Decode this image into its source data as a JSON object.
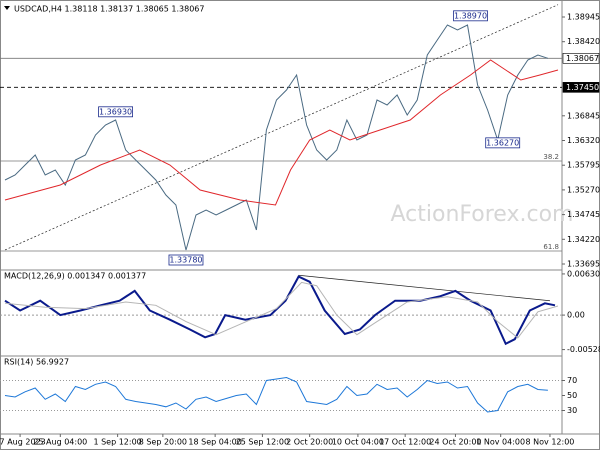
{
  "chart_data": [
    {
      "type": "line",
      "title": "USDCAD,H4  1.38118 1.38137 1.38065 1.38067",
      "watermark": "ActionForex.com",
      "ylim": [
        1.3361,
        1.392
      ],
      "xlim": [
        0,
        55
      ],
      "yticks": [
        {
          "value": 1.38945,
          "label": "1.38945"
        },
        {
          "value": 1.3842,
          "label": "1.38420"
        },
        {
          "value": 1.36845,
          "label": "1.36845"
        },
        {
          "value": 1.3632,
          "label": "1.36320"
        },
        {
          "value": 1.35795,
          "label": "1.35795"
        },
        {
          "value": 1.3527,
          "label": "1.35270"
        },
        {
          "value": 1.34745,
          "label": "1.34745"
        },
        {
          "value": 1.3422,
          "label": "1.34220"
        },
        {
          "value": 1.33695,
          "label": "1.33695"
        }
      ],
      "series": [
        {
          "name": "Close",
          "color": "#4a6a82",
          "values": [
            1.3548,
            1.35587,
            1.35799,
            1.36012,
            1.35587,
            1.35693,
            1.35374,
            1.35905,
            1.36012,
            1.36437,
            1.36649,
            1.36756,
            1.36118,
            1.35905,
            1.35693,
            1.3548,
            1.35162,
            1.34949,
            1.33993,
            1.34736,
            1.34843,
            1.34736,
            1.34843,
            1.34949,
            1.35055,
            1.34418,
            1.36543,
            1.37181,
            1.37393,
            1.37712,
            1.36649,
            1.36118,
            1.35905,
            1.36118,
            1.36756,
            1.36331,
            1.36437,
            1.37181,
            1.37074,
            1.37287,
            1.36862,
            1.37181,
            1.38137,
            1.38456,
            1.38775,
            1.38669,
            1.38775,
            1.375,
            1.36968,
            1.36331,
            1.37287,
            1.37712,
            1.38031,
            1.38137,
            1.38067
          ]
        },
        {
          "name": "MA",
          "color": "#e0272b",
          "x": [
            0,
            5.5,
            9.5,
            13.4,
            16.4,
            19.4,
            23.4,
            26.9,
            28.4,
            30.3,
            32.3,
            34.3,
            37.3,
            40.3,
            43.3,
            46.3,
            48.3,
            49.8,
            51.3,
            53.2,
            55
          ],
          "values": [
            1.35055,
            1.35374,
            1.35799,
            1.36118,
            1.35799,
            1.35268,
            1.35055,
            1.34949,
            1.35693,
            1.36331,
            1.36543,
            1.36331,
            1.36543,
            1.36756,
            1.37287,
            1.37712,
            1.38031,
            1.37818,
            1.37606,
            1.37712,
            1.37818
          ]
        }
      ],
      "levels": [
        {
          "value": 1.38067,
          "label": "1.38067",
          "style": "solid"
        },
        {
          "value": 1.3745,
          "label": "1.37450",
          "style": "dashed"
        },
        {
          "value": 1.35884,
          "label": "38.2",
          "style": "fib"
        },
        {
          "value": 1.33971,
          "label": "61.8",
          "style": "fib"
        }
      ],
      "trendlines": [
        {
          "x": [
            0,
            55
          ],
          "values": [
            1.33993,
            1.39206
          ],
          "style": "dotted"
        }
      ],
      "annotations": [
        {
          "text": "1.36930",
          "x": 11,
          "y": 1.3693
        },
        {
          "text": "1.33780",
          "x": 18,
          "y": 1.3378
        },
        {
          "text": "1.38970",
          "x": 46.3,
          "y": 1.3897
        },
        {
          "text": "1.36270",
          "x": 49.5,
          "y": 1.3627
        }
      ],
      "xticks": [
        {
          "value": 1.5,
          "label": "17 Aug 2023"
        },
        {
          "value": 5.5,
          "label": "25 Aug 04:00"
        },
        {
          "value": 11.2,
          "label": "1 Sep 12:00"
        },
        {
          "value": 15.7,
          "label": "8 Sep 20:00"
        },
        {
          "value": 20.9,
          "label": "18 Sep 04:00"
        },
        {
          "value": 25.6,
          "label": "25 Sep 12:00"
        },
        {
          "value": 30.3,
          "label": "2 Oct 20:00"
        },
        {
          "value": 35.1,
          "label": "10 Oct 04:00"
        },
        {
          "value": 39.8,
          "label": "17 Oct 12:00"
        },
        {
          "value": 44.8,
          "label": "24 Oct 20:00"
        },
        {
          "value": 49.3,
          "label": "1 Nov 04:00"
        },
        {
          "value": 54.2,
          "label": "8 Nov 12:00"
        }
      ]
    },
    {
      "type": "line",
      "title": "MACD(12,26,9) 0.001347 0.001377",
      "ylim": [
        -0.0055,
        0.0066
      ],
      "xlim": [
        0,
        55
      ],
      "yticks": [
        0.006305,
        {
          "value": 0,
          "label": "0.00"
        },
        -0.005283
      ],
      "zero_line": true,
      "series": [
        {
          "name": "MACD",
          "color": "#0a1a8c",
          "x": [
            0,
            1.5,
            3.5,
            5.5,
            7.5,
            9.5,
            11.4,
            12.9,
            14.4,
            16.4,
            18.4,
            19.9,
            20.9,
            21.9,
            23.9,
            26.4,
            27.9,
            29.2,
            30.3,
            31.8,
            33.8,
            35.3,
            36.8,
            38.8,
            41.3,
            43.3,
            44.8,
            46.3,
            48.3,
            49.8,
            50.7,
            52.2,
            53.7,
            54.7
          ],
          "values": [
            0.0022,
            0.0007,
            0.0022,
            0,
            0.0007,
            0.0015,
            0.0022,
            0.0037,
            0.0007,
            -0.0007,
            -0.0022,
            -0.0034,
            -0.0029,
            0,
            -0.0007,
            0,
            0.0022,
            0.0059,
            0.0051,
            0.0007,
            -0.0029,
            -0.0022,
            0,
            0.0022,
            0.0022,
            0.0029,
            0.0037,
            0.0022,
            0.0007,
            -0.0044,
            -0.0037,
            0.0007,
            0.0018,
            0.0015
          ]
        },
        {
          "name": "Signal",
          "color": "#b5b5b5",
          "x": [
            0,
            4,
            8,
            12,
            15,
            18,
            21,
            24,
            27,
            29.5,
            31,
            33,
            35,
            37,
            40,
            44,
            47,
            49,
            51,
            53,
            55
          ],
          "values": [
            0.0018,
            0.0012,
            0.001,
            0.002,
            0.0015,
            -0.001,
            -0.003,
            -0.001,
            0.001,
            0.005,
            0.0045,
            0,
            -0.003,
            -0.001,
            0.002,
            0.0028,
            0.002,
            -0.001,
            -0.0035,
            0.0005,
            0.0014
          ]
        }
      ],
      "trendlines": [
        {
          "x": [
            29.2,
            54.2
          ],
          "values": [
            0.0061,
            0.0022
          ],
          "style": "solid"
        }
      ]
    },
    {
      "type": "line",
      "title": "RSI(14) 56.9927",
      "ylim": [
        0,
        100
      ],
      "xlim": [
        0,
        55
      ],
      "yticks": [
        70,
        50,
        30
      ],
      "guide_levels": [
        70,
        30
      ],
      "series": [
        {
          "name": "RSI",
          "color": "#1e78d8",
          "values": [
            50,
            48,
            55,
            60,
            45,
            52,
            42,
            62,
            58,
            65,
            68,
            62,
            45,
            42,
            40,
            38,
            35,
            40,
            32,
            45,
            48,
            42,
            46,
            50,
            52,
            38,
            70,
            72,
            74,
            68,
            42,
            40,
            38,
            45,
            62,
            50,
            52,
            65,
            58,
            60,
            48,
            58,
            70,
            66,
            68,
            60,
            62,
            40,
            28,
            30,
            55,
            62,
            65,
            58,
            57
          ]
        }
      ]
    }
  ]
}
